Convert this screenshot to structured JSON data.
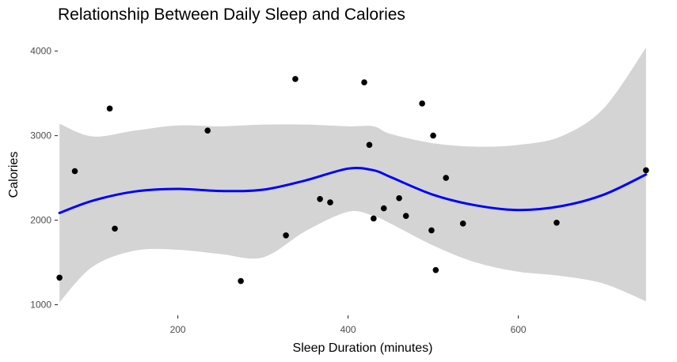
{
  "chart_data": {
    "type": "scatter",
    "title": "Relationship Between Daily Sleep and Calories",
    "xlabel": "Sleep Duration (minutes)",
    "ylabel": "Calories",
    "xlim": [
      59,
      752
    ],
    "ylim": [
      930,
      4090
    ],
    "x_ticks": [
      200,
      400,
      600
    ],
    "y_ticks": [
      1000,
      2000,
      3000,
      4000
    ],
    "x_tick_labels": [
      "200",
      "400",
      "600"
    ],
    "y_tick_labels": [
      "1000",
      "2000",
      "3000",
      "4000"
    ],
    "grid": false,
    "legend": "none",
    "colors": {
      "points": "#000000",
      "smooth": "#0000ff",
      "band": "#d4d4d4"
    },
    "points": [
      {
        "x": 61,
        "y": 1320
      },
      {
        "x": 79,
        "y": 2580
      },
      {
        "x": 120,
        "y": 3320
      },
      {
        "x": 126,
        "y": 1900
      },
      {
        "x": 235,
        "y": 3060
      },
      {
        "x": 274,
        "y": 1280
      },
      {
        "x": 327,
        "y": 1820
      },
      {
        "x": 338,
        "y": 3670
      },
      {
        "x": 367,
        "y": 2250
      },
      {
        "x": 379,
        "y": 2210
      },
      {
        "x": 419,
        "y": 3630
      },
      {
        "x": 425,
        "y": 2890
      },
      {
        "x": 430,
        "y": 2020
      },
      {
        "x": 442,
        "y": 2140
      },
      {
        "x": 460,
        "y": 2260
      },
      {
        "x": 468,
        "y": 2050
      },
      {
        "x": 487,
        "y": 3380
      },
      {
        "x": 498,
        "y": 1880
      },
      {
        "x": 500,
        "y": 3000
      },
      {
        "x": 503,
        "y": 1410
      },
      {
        "x": 515,
        "y": 2500
      },
      {
        "x": 535,
        "y": 1960
      },
      {
        "x": 645,
        "y": 1970
      },
      {
        "x": 750,
        "y": 2590
      }
    ],
    "smooth_line": {
      "x": [
        61,
        100,
        150,
        200,
        250,
        300,
        350,
        400,
        430,
        450,
        500,
        550,
        600,
        650,
        700,
        750
      ],
      "y": [
        2085,
        2230,
        2340,
        2370,
        2345,
        2360,
        2470,
        2610,
        2590,
        2510,
        2300,
        2175,
        2120,
        2165,
        2300,
        2540
      ]
    },
    "confidence_band": {
      "x": [
        61,
        100,
        150,
        200,
        250,
        300,
        350,
        400,
        430,
        450,
        500,
        550,
        600,
        650,
        700,
        750
      ],
      "lower": [
        1030,
        1450,
        1640,
        1650,
        1600,
        1560,
        1870,
        2100,
        2050,
        1960,
        1700,
        1500,
        1390,
        1340,
        1250,
        1040
      ],
      "upper": [
        3140,
        2990,
        3060,
        3120,
        3110,
        3130,
        3130,
        3110,
        3110,
        3020,
        2910,
        2870,
        2890,
        2990,
        3320,
        4040
      ]
    }
  }
}
